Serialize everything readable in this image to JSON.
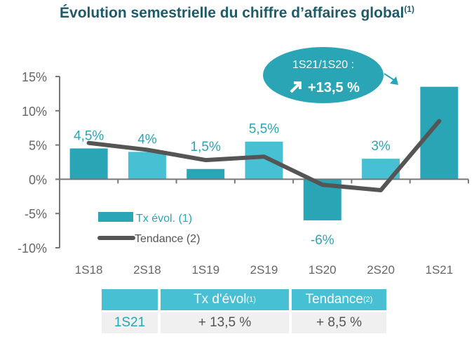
{
  "title": "Évolution semestrielle du chiffre d’affaires global",
  "title_note": "(1)",
  "colors": {
    "dark": "#2aa5b5",
    "light": "#48c0d4",
    "trend": "#555555",
    "title": "#1d5b6b",
    "label": "#2aa5b5"
  },
  "chart_data": {
    "type": "bar",
    "categories": [
      "1S18",
      "2S18",
      "1S19",
      "2S19",
      "1S20",
      "2S20",
      "1S21"
    ],
    "series": [
      {
        "name": "Tx évol. (1)",
        "type": "bar",
        "values": [
          4.5,
          4,
          1.5,
          5.5,
          -6,
          3,
          13.5
        ],
        "labels": [
          "4,5%",
          "4%",
          "1,5%",
          "5,5%",
          "-6%",
          "3%",
          ""
        ]
      },
      {
        "name": "Tendance (2)",
        "type": "line",
        "values": [
          5.3,
          4.3,
          2.8,
          3.3,
          -0.8,
          -1.6,
          8.5
        ]
      }
    ],
    "yticks": [
      "15%",
      "10%",
      "5%",
      "0%",
      "-5%",
      "-10%"
    ],
    "ylim": [
      -10,
      15
    ],
    "legend": "bottom-left",
    "grid": false,
    "callout": {
      "line1": "1S21/1S20 :",
      "line2": "+13,5 %",
      "icon": "arrow-up-right-icon"
    }
  },
  "table": {
    "headers": [
      "",
      "Tx d'évol",
      "Tendance"
    ],
    "header_notes": [
      "",
      "(1)",
      "(2)"
    ],
    "row": [
      "1S21",
      "+ 13,5 %",
      "+ 8,5 %"
    ]
  }
}
